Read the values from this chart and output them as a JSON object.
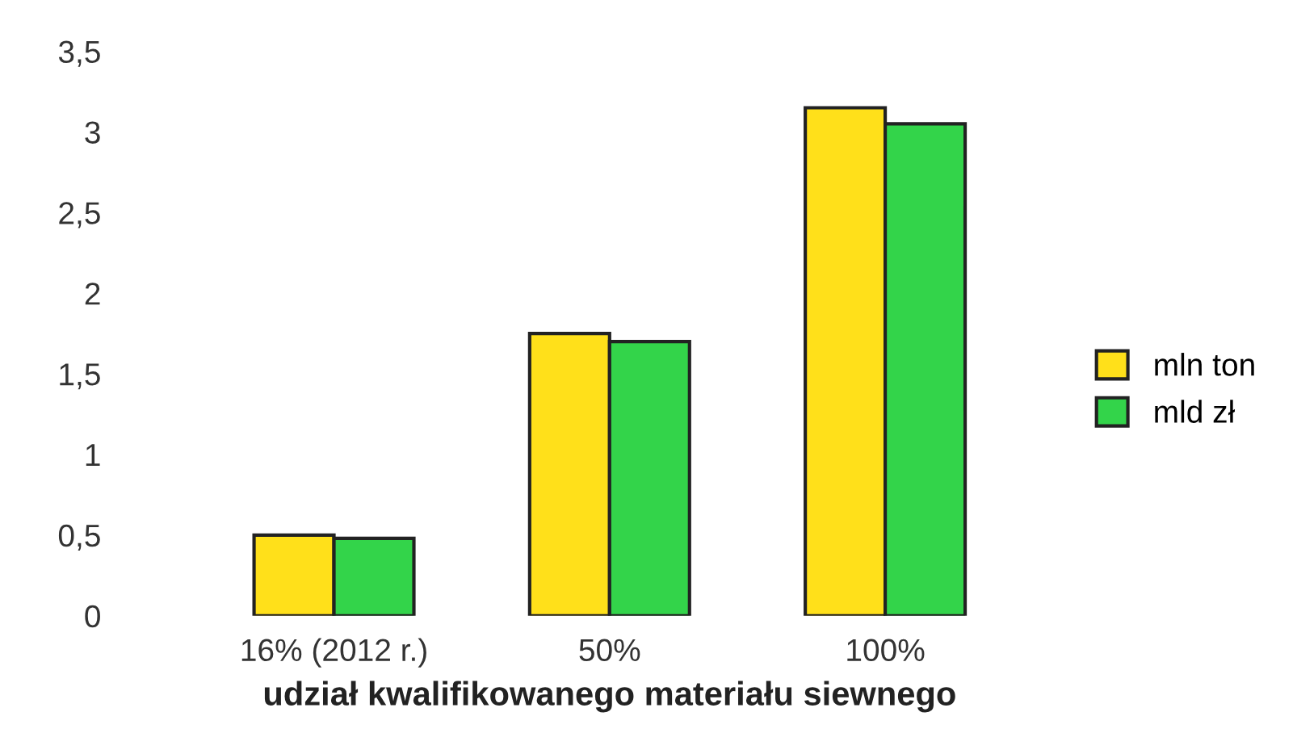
{
  "chart_data": {
    "type": "bar",
    "xlabel": "udział kwalifikowanego materiału siewnego",
    "categories": [
      "16% (2012 r.)",
      "50%",
      "100%"
    ],
    "series": [
      {
        "name": "mln ton",
        "color": "#ffe01a",
        "values": [
          0.5,
          1.75,
          3.15
        ]
      },
      {
        "name": "mld zł",
        "color": "#33d44a",
        "values": [
          0.48,
          1.7,
          3.05
        ]
      }
    ],
    "ylim": [
      0,
      3.5
    ],
    "yticks": [
      {
        "value": 0,
        "label": "0"
      },
      {
        "value": 0.5,
        "label": "0,5"
      },
      {
        "value": 1,
        "label": "1"
      },
      {
        "value": 1.5,
        "label": "1,5"
      },
      {
        "value": 2,
        "label": "2"
      },
      {
        "value": 2.5,
        "label": "2,5"
      },
      {
        "value": 3,
        "label": "3"
      },
      {
        "value": 3.5,
        "label": "3,5"
      }
    ],
    "grid": false,
    "legend": "right"
  }
}
